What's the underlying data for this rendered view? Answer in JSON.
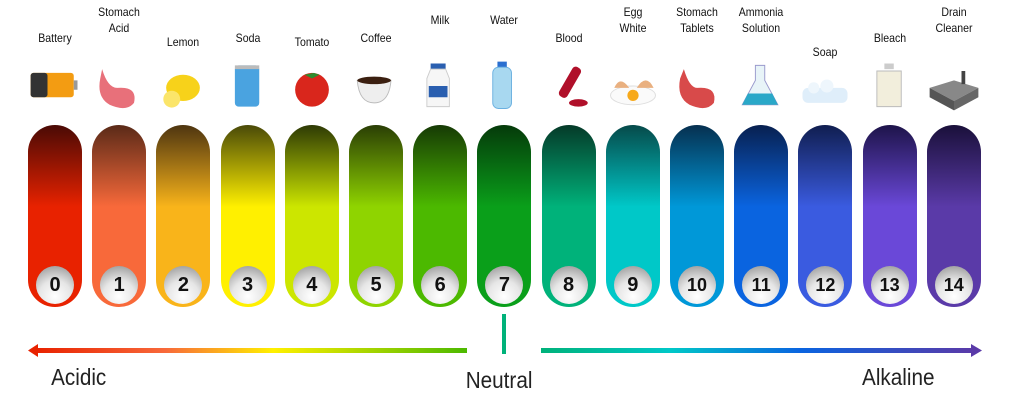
{
  "scale": [
    {
      "ph": "0",
      "label": [
        "Battery"
      ],
      "icon": "battery-icon",
      "color": "#e82200",
      "dark": "#4a0a05"
    },
    {
      "ph": "1",
      "label": [
        "Stomach",
        "Acid"
      ],
      "icon": "stomach-icon",
      "color": "#f8693a",
      "dark": "#5a2a18"
    },
    {
      "ph": "2",
      "label": [
        "Lemon"
      ],
      "icon": "lemon-icon",
      "color": "#f9b41a",
      "dark": "#4e3510"
    },
    {
      "ph": "3",
      "label": [
        "Soda"
      ],
      "icon": "soda-can-icon",
      "color": "#fff000",
      "dark": "#4a4a08"
    },
    {
      "ph": "4",
      "label": [
        "Tomato"
      ],
      "icon": "tomato-icon",
      "color": "#cce600",
      "dark": "#2e3a05"
    },
    {
      "ph": "5",
      "label": [
        "Coffee"
      ],
      "icon": "coffee-cup-icon",
      "color": "#8fd400",
      "dark": "#2a3e05"
    },
    {
      "ph": "6",
      "label": [
        "Milk"
      ],
      "icon": "milk-bottle-icon",
      "color": "#4cb900",
      "dark": "#163a05"
    },
    {
      "ph": "7",
      "label": [
        "Water"
      ],
      "icon": "water-bottle-icon",
      "color": "#0a9f1a",
      "dark": "#053a0a"
    },
    {
      "ph": "8",
      "label": [
        "Blood"
      ],
      "icon": "blood-tube-icon",
      "color": "#00b27a",
      "dark": "#053a28"
    },
    {
      "ph": "9",
      "label": [
        "Egg",
        "White"
      ],
      "icon": "egg-icon",
      "color": "#00c8c8",
      "dark": "#064a4a"
    },
    {
      "ph": "10",
      "label": [
        "Stomach",
        "Tablets"
      ],
      "icon": "stomach-tablets-icon",
      "color": "#0098d8",
      "dark": "#063050"
    },
    {
      "ph": "11",
      "label": [
        "Ammonia",
        "Solution"
      ],
      "icon": "flask-icon",
      "color": "#0a64e0",
      "dark": "#082050"
    },
    {
      "ph": "12",
      "label": [
        "Soap"
      ],
      "icon": "soap-icon",
      "color": "#3a5be0",
      "dark": "#101e50"
    },
    {
      "ph": "13",
      "label": [
        "Bleach"
      ],
      "icon": "bleach-jug-icon",
      "color": "#6a48d8",
      "dark": "#1e144a"
    },
    {
      "ph": "14",
      "label": [
        "Drain",
        "Cleaner"
      ],
      "icon": "sink-icon",
      "color": "#5a3aa8",
      "dark": "#1a103a"
    }
  ],
  "axis": {
    "acidic": "Acidic",
    "neutral": "Neutral",
    "alkaline": "Alkaline",
    "neutral_color": "#00b27a"
  }
}
